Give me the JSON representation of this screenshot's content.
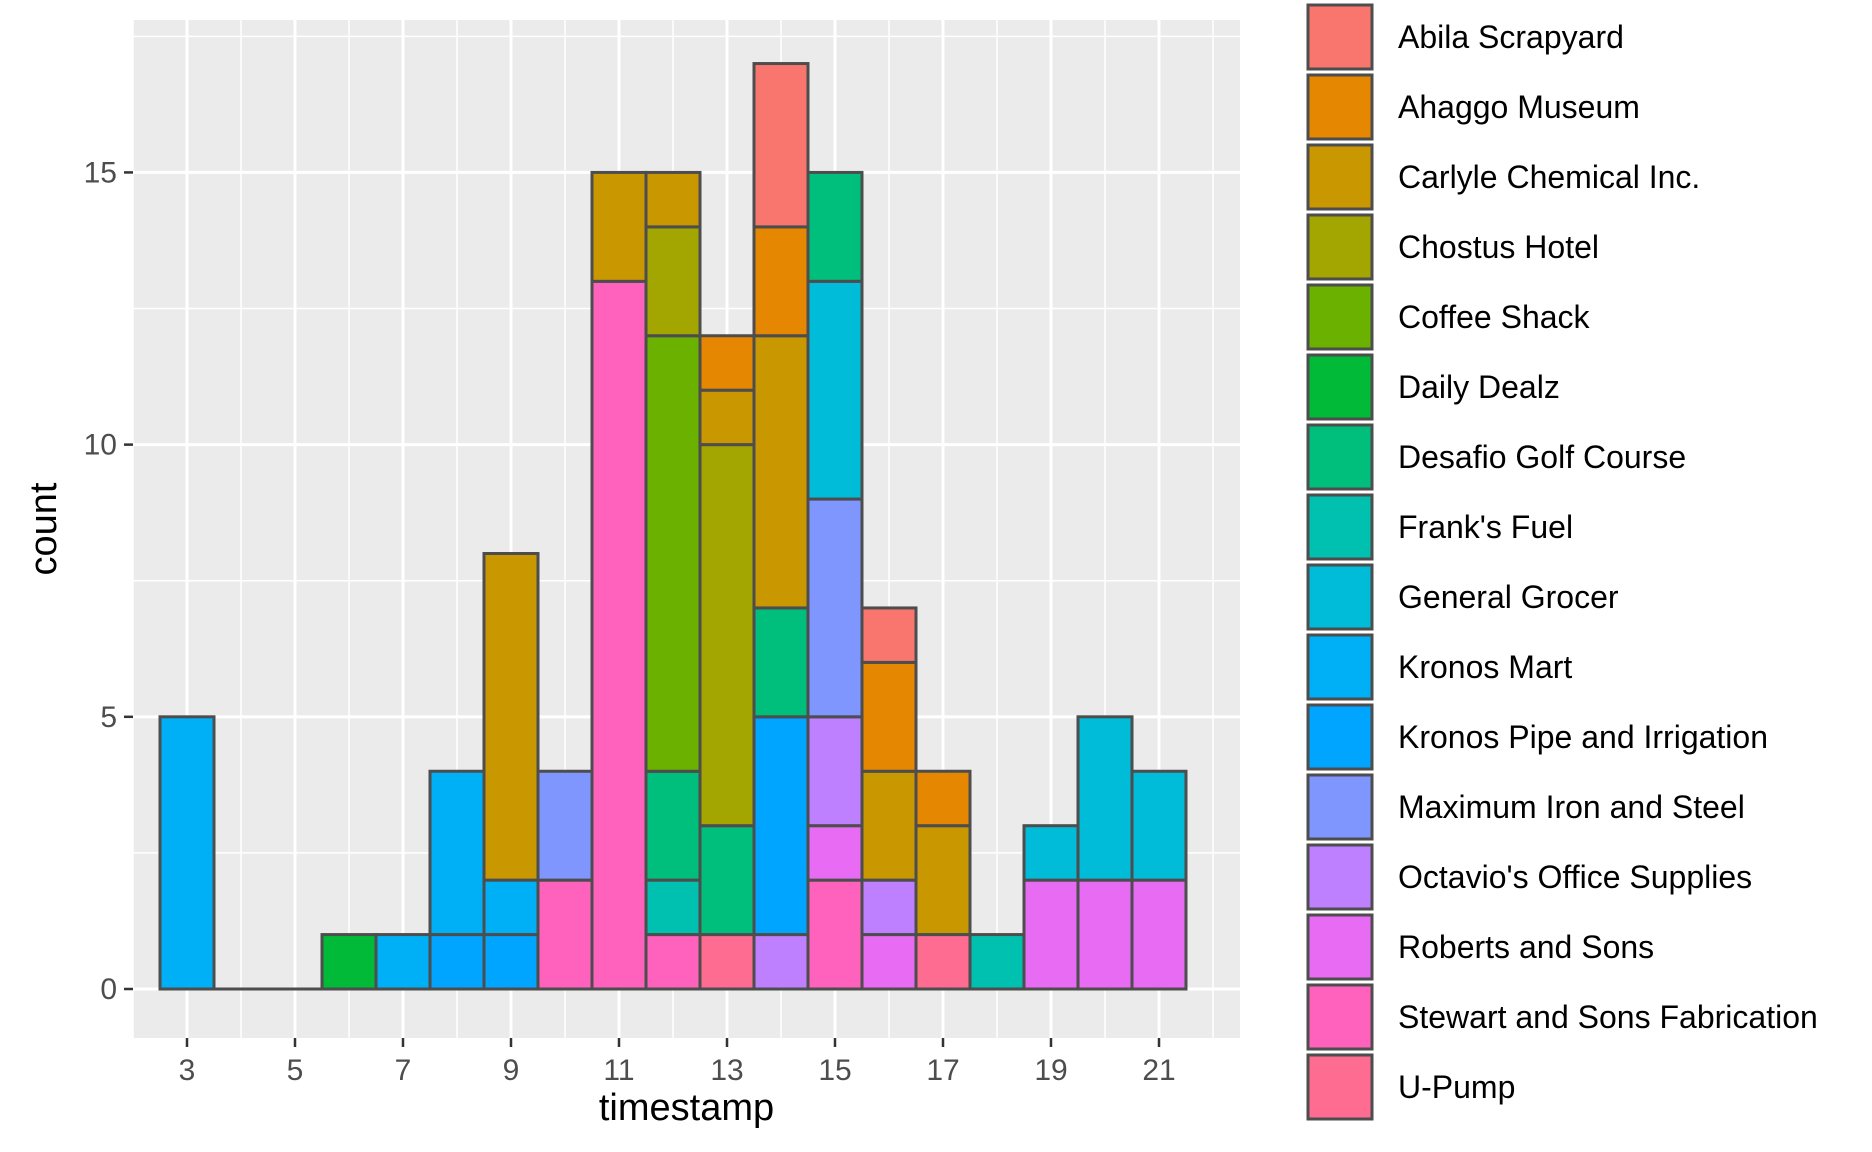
{
  "chart_data": {
    "type": "bar",
    "stacked": true,
    "xlabel": "timestamp",
    "ylabel": "count",
    "xlim": [
      2,
      22.5
    ],
    "ylim": [
      -0.9,
      17.8
    ],
    "x_ticks": [
      3,
      5,
      7,
      9,
      11,
      13,
      15,
      17,
      19,
      21
    ],
    "y_ticks": [
      0,
      5,
      10,
      15
    ],
    "grid": true,
    "legend_position": "right",
    "bar_outline_color": "#4d4d4d",
    "panel_background": "#ebebeb",
    "series": [
      {
        "name": "Abila Scrapyard",
        "color": "#F8766D",
        "points": [
          [
            14,
            3
          ],
          [
            16,
            1
          ]
        ]
      },
      {
        "name": "Ahaggo Museum",
        "color": "#E58700",
        "points": [
          [
            13,
            1
          ],
          [
            14,
            2
          ],
          [
            16,
            2
          ],
          [
            17,
            1
          ]
        ]
      },
      {
        "name": "Carlyle Chemical Inc.",
        "color": "#C99800",
        "points": [
          [
            9,
            6
          ],
          [
            11,
            2
          ],
          [
            12,
            1
          ],
          [
            13,
            1
          ],
          [
            14,
            5
          ],
          [
            16,
            2
          ],
          [
            17,
            2
          ]
        ]
      },
      {
        "name": "Chostus Hotel",
        "color": "#A3A500",
        "points": [
          [
            12,
            2
          ],
          [
            13,
            7
          ]
        ]
      },
      {
        "name": "Coffee Shack",
        "color": "#6BB100",
        "points": [
          [
            12,
            8
          ]
        ]
      },
      {
        "name": "Daily Dealz",
        "color": "#00BA38",
        "points": [
          [
            6,
            1
          ]
        ]
      },
      {
        "name": "Desafio Golf Course",
        "color": "#00BF7D",
        "points": [
          [
            12,
            2
          ],
          [
            13,
            2
          ],
          [
            14,
            2
          ],
          [
            15,
            2
          ]
        ]
      },
      {
        "name": "Frank's Fuel",
        "color": "#00C0AF",
        "points": [
          [
            12,
            1
          ],
          [
            18,
            1
          ]
        ]
      },
      {
        "name": "General Grocer",
        "color": "#00BCD8",
        "points": [
          [
            15,
            4
          ],
          [
            19,
            1
          ],
          [
            20,
            3
          ],
          [
            21,
            2
          ]
        ]
      },
      {
        "name": "Kronos Mart",
        "color": "#00B0F6",
        "points": [
          [
            3,
            5
          ],
          [
            7,
            1
          ],
          [
            8,
            3
          ],
          [
            9,
            1
          ]
        ]
      },
      {
        "name": "Kronos Pipe and Irrigation",
        "color": "#00A5FF",
        "points": [
          [
            8,
            1
          ],
          [
            9,
            1
          ],
          [
            14,
            4
          ]
        ]
      },
      {
        "name": "Maximum Iron and Steel",
        "color": "#7F96FF",
        "points": [
          [
            10,
            2
          ],
          [
            15,
            4
          ]
        ]
      },
      {
        "name": "Octavio's Office Supplies",
        "color": "#BF80FF",
        "points": [
          [
            14,
            1
          ],
          [
            15,
            2
          ],
          [
            16,
            1
          ]
        ]
      },
      {
        "name": "Roberts and Sons",
        "color": "#E76BF3",
        "points": [
          [
            15,
            1
          ],
          [
            16,
            1
          ],
          [
            19,
            2
          ],
          [
            20,
            2
          ],
          [
            21,
            2
          ]
        ]
      },
      {
        "name": "Stewart and Sons Fabrication",
        "color": "#FF62BC",
        "points": [
          [
            10,
            2
          ],
          [
            11,
            13
          ],
          [
            12,
            1
          ],
          [
            15,
            2
          ]
        ]
      },
      {
        "name": "U-Pump",
        "color": "#FF6C91",
        "points": [
          [
            13,
            1
          ],
          [
            17,
            1
          ]
        ]
      }
    ],
    "zero_height_bins": [
      4,
      5
    ]
  }
}
